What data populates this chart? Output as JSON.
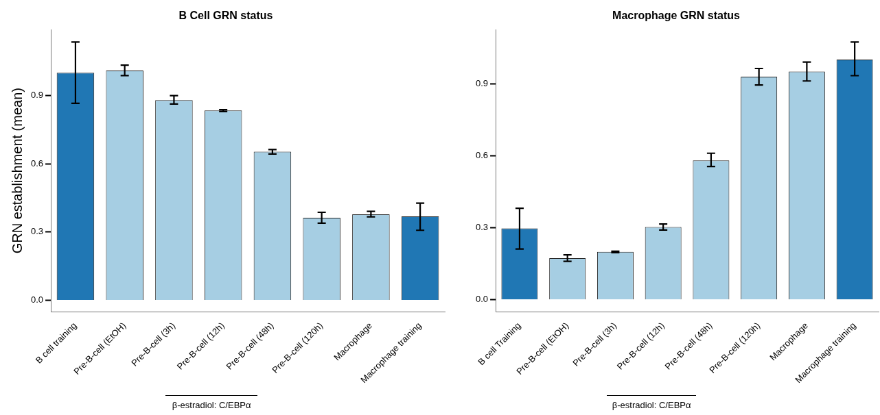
{
  "chart_data": [
    {
      "type": "bar",
      "title": "B Cell GRN status",
      "ylabel": "GRN establishment (mean)",
      "categories": [
        "B cell training",
        "Pre-B-cell (EtOH)",
        "Pre-B-cell (3h)",
        "Pre-B-cell (12h)",
        "Pre-B-cell (48h)",
        "Pre-B-cell (120h)",
        "Macrophage",
        "Macrophage training"
      ],
      "values": [
        1.0,
        1.01,
        0.88,
        0.835,
        0.653,
        0.363,
        0.378,
        0.369
      ],
      "errors": [
        [
          0.866,
          1.135
        ],
        [
          0.988,
          1.034
        ],
        [
          0.863,
          0.9
        ],
        [
          0.83,
          0.838
        ],
        [
          0.643,
          0.663
        ],
        [
          0.339,
          0.387
        ],
        [
          0.367,
          0.391
        ],
        [
          0.308,
          0.427
        ]
      ],
      "colors": [
        "#2077b4",
        "#a6cee3",
        "#a6cee3",
        "#a6cee3",
        "#a6cee3",
        "#a6cee3",
        "#a6cee3",
        "#2077b4"
      ],
      "ylim": [
        -0.05,
        1.19
      ],
      "yticks": [
        {
          "value": 0,
          "label": "0.0"
        },
        0.3,
        0.6,
        0.9
      ],
      "grid": false,
      "legend": false,
      "annotations": [
        "β-estradiol: C/EBPα"
      ]
    },
    {
      "type": "bar",
      "title": "Macrophage GRN status",
      "categories": [
        "B cell Training",
        "Pre-B-cell (EtOH)",
        "Pre-B-cell (3h)",
        "Pre-B-cell (12h)",
        "Pre-B-cell (48h)",
        "Pre-B-cell (120h)",
        "Macrophage",
        "Macrophage training"
      ],
      "values": [
        0.297,
        0.173,
        0.199,
        0.303,
        0.58,
        0.929,
        0.95,
        1.0
      ],
      "errors": [
        [
          0.211,
          0.381
        ],
        [
          0.16,
          0.187
        ],
        [
          0.196,
          0.202
        ],
        [
          0.29,
          0.315
        ],
        [
          0.555,
          0.61
        ],
        [
          0.894,
          0.963
        ],
        [
          0.911,
          0.99
        ],
        [
          0.933,
          1.073
        ]
      ],
      "colors": [
        "#2077b4",
        "#a6cee3",
        "#a6cee3",
        "#a6cee3",
        "#a6cee3",
        "#a6cee3",
        "#a6cee3",
        "#2077b4"
      ],
      "ylim": [
        -0.05,
        1.125
      ],
      "yticks": [
        {
          "value": 0,
          "label": "0.0"
        },
        0.3,
        0.6,
        0.9
      ],
      "grid": false,
      "legend": false,
      "annotations": [
        "β-estradiol: C/EBPα"
      ]
    }
  ]
}
